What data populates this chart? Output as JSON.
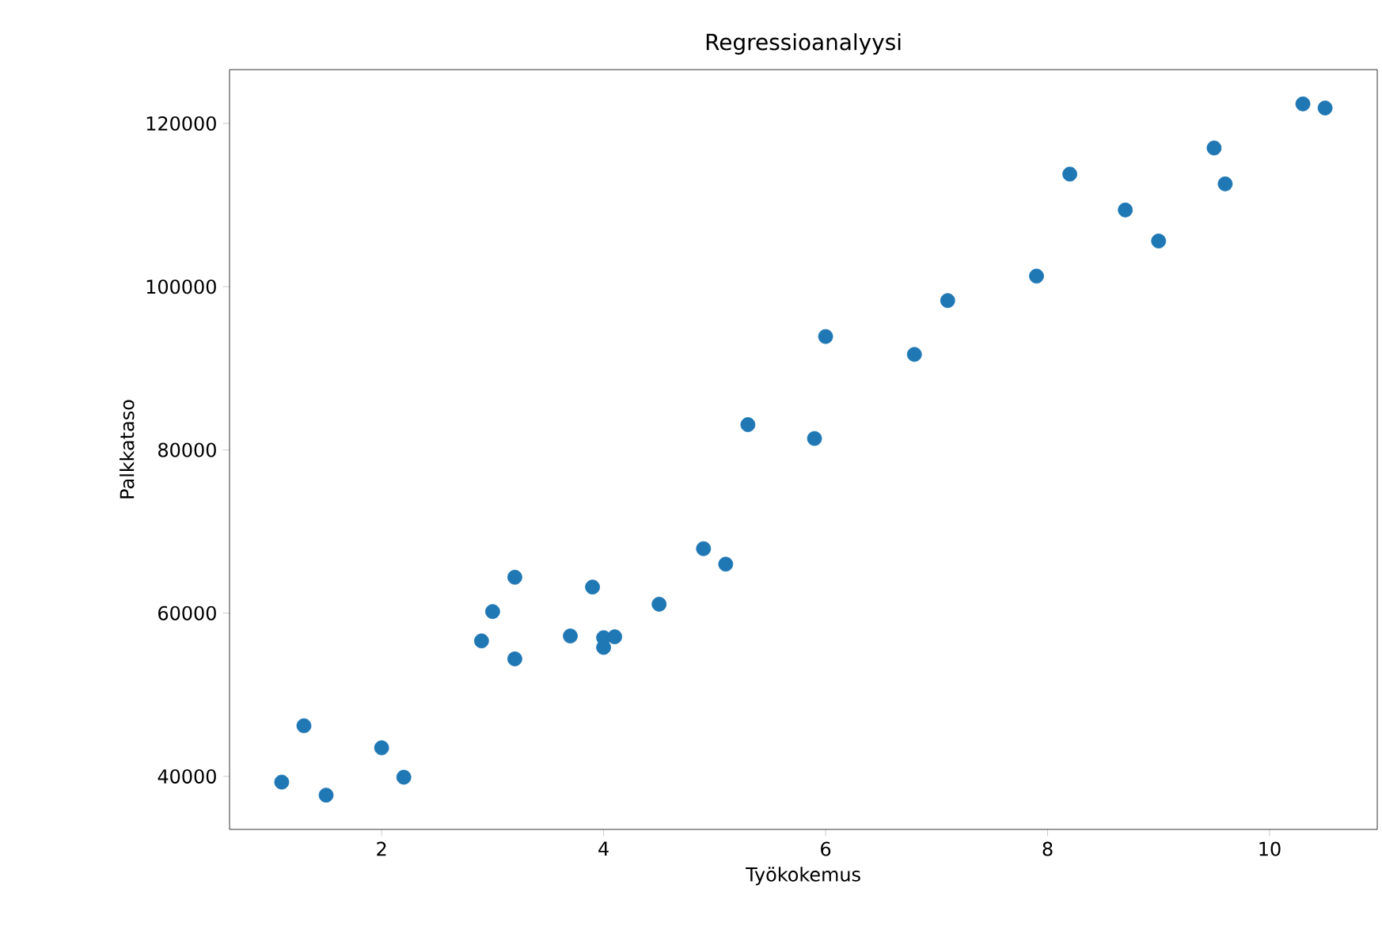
{
  "chart_data": {
    "type": "scatter",
    "title": "Regressioanalyysi",
    "xlabel": "Työkokemus",
    "ylabel": "Palkkataso",
    "x": [
      1.1,
      1.3,
      1.5,
      2.0,
      2.2,
      2.9,
      3.0,
      3.2,
      3.2,
      3.7,
      3.9,
      4.0,
      4.0,
      4.1,
      4.5,
      4.9,
      5.1,
      5.3,
      5.9,
      6.0,
      6.8,
      7.1,
      7.9,
      8.2,
      8.7,
      9.0,
      9.5,
      9.6,
      10.3,
      10.5
    ],
    "values": [
      39300,
      46200,
      37700,
      43500,
      39900,
      56600,
      60200,
      54400,
      64400,
      57200,
      63200,
      55800,
      57000,
      57100,
      61100,
      67900,
      66000,
      83100,
      81400,
      93900,
      91700,
      98300,
      101300,
      113800,
      109400,
      105600,
      117000,
      112600,
      122400,
      121900
    ],
    "color": "#1f77b4",
    "marker": "circle",
    "xlim": [
      0.63,
      10.97
    ],
    "ylim": [
      33500,
      126600
    ],
    "xticks": [
      2,
      4,
      6,
      8,
      10
    ],
    "yticks": [
      40000,
      60000,
      80000,
      100000,
      120000
    ]
  }
}
